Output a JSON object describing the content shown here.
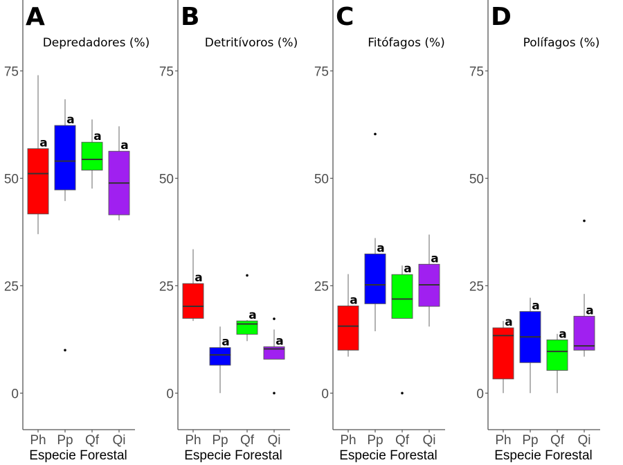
{
  "chart_data": [
    {
      "type": "boxplot",
      "panel_label": "A",
      "title": "Depredadores (%)",
      "xlabel": "Especie Forestal",
      "ylabel": "",
      "ylim": [
        -8.5,
        91.5
      ],
      "yticks": [
        0,
        25,
        50,
        75
      ],
      "grid": false,
      "categories": [
        "Ph",
        "Pp",
        "Qf",
        "Qi"
      ],
      "colors": [
        "#ff0000",
        "#0000ff",
        "#00ff00",
        "#a020f0"
      ],
      "boxes": [
        {
          "min": 37.0,
          "q1": 41.7,
          "median": 51.1,
          "q3": 56.9,
          "max": 74.0,
          "outliers": [],
          "letter": "a"
        },
        {
          "min": 44.7,
          "q1": 47.3,
          "median": 54.0,
          "q3": 62.3,
          "max": 68.4,
          "outliers": [
            10.0
          ],
          "letter": "a"
        },
        {
          "min": 47.6,
          "q1": 51.9,
          "median": 54.4,
          "q3": 58.4,
          "max": 63.7,
          "outliers": [],
          "letter": "a"
        },
        {
          "min": 40.2,
          "q1": 41.5,
          "median": 48.9,
          "q3": 56.3,
          "max": 62.1,
          "outliers": [],
          "letter": "a"
        }
      ]
    },
    {
      "type": "boxplot",
      "panel_label": "B",
      "title": "Detritívoros (%)",
      "xlabel": "Especie Forestal",
      "ylabel": "",
      "ylim": [
        -8.5,
        91.5
      ],
      "yticks": [
        0,
        25,
        50,
        75
      ],
      "grid": false,
      "categories": [
        "Ph",
        "Pp",
        "Qf",
        "Qi"
      ],
      "colors": [
        "#ff0000",
        "#0000ff",
        "#00ff00",
        "#a020f0"
      ],
      "boxes": [
        {
          "min": 16.8,
          "q1": 17.4,
          "median": 20.2,
          "q3": 25.5,
          "max": 33.5,
          "outliers": [],
          "letter": "a"
        },
        {
          "min": 0,
          "q1": 6.5,
          "median": 8.9,
          "q3": 10.6,
          "max": 15.5,
          "outliers": [],
          "letter": "a"
        },
        {
          "min": 12.1,
          "q1": 13.7,
          "median": 16.1,
          "q3": 16.8,
          "max": 17.0,
          "outliers": [
            27.4
          ],
          "letter": "a"
        },
        {
          "min": 7.9,
          "q1": 7.9,
          "median": 10.3,
          "q3": 10.8,
          "max": 14.8,
          "outliers": [
            17.3,
            0
          ],
          "letter": "a"
        }
      ]
    },
    {
      "type": "boxplot",
      "panel_label": "C",
      "title": "Fitófagos (%)",
      "xlabel": "Especie Forestal",
      "ylabel": "",
      "ylim": [
        -8.5,
        91.5
      ],
      "yticks": [
        0,
        25,
        50,
        75
      ],
      "grid": false,
      "categories": [
        "Ph",
        "Pp",
        "Qf",
        "Qi"
      ],
      "colors": [
        "#ff0000",
        "#0000ff",
        "#00ff00",
        "#a020f0"
      ],
      "boxes": [
        {
          "min": 8.5,
          "q1": 10.0,
          "median": 15.6,
          "q3": 20.3,
          "max": 27.7,
          "outliers": [],
          "letter": "a"
        },
        {
          "min": 14.4,
          "q1": 20.8,
          "median": 25.2,
          "q3": 32.4,
          "max": 36.1,
          "outliers": [
            60.3
          ],
          "letter": "a"
        },
        {
          "min": 17.4,
          "q1": 17.4,
          "median": 21.9,
          "q3": 27.6,
          "max": 29.7,
          "outliers": [
            0
          ],
          "letter": "a"
        },
        {
          "min": 15.5,
          "q1": 20.2,
          "median": 25.2,
          "q3": 30.0,
          "max": 36.9,
          "outliers": [],
          "letter": "a"
        }
      ]
    },
    {
      "type": "boxplot",
      "panel_label": "D",
      "title": "Polífagos (%)",
      "xlabel": "Especie Forestal",
      "ylabel": "",
      "ylim": [
        -8.5,
        91.5
      ],
      "yticks": [
        0,
        25,
        50,
        75
      ],
      "grid": false,
      "categories": [
        "Ph",
        "Pp",
        "Qf",
        "Qi"
      ],
      "colors": [
        "#ff0000",
        "#0000ff",
        "#00ff00",
        "#a020f0"
      ],
      "boxes": [
        {
          "min": 0,
          "q1": 3.3,
          "median": 13.4,
          "q3": 15.2,
          "max": 16.8,
          "outliers": [],
          "letter": "a"
        },
        {
          "min": 0,
          "q1": 7.1,
          "median": 13.1,
          "q3": 19.0,
          "max": 22.2,
          "outliers": [],
          "letter": "a"
        },
        {
          "min": 0,
          "q1": 5.3,
          "median": 9.7,
          "q3": 12.4,
          "max": 13.8,
          "outliers": [],
          "letter": "a"
        },
        {
          "min": 8.5,
          "q1": 10.0,
          "median": 11.0,
          "q3": 17.9,
          "max": 23.1,
          "outliers": [
            40.1
          ],
          "letter": "a"
        }
      ]
    }
  ]
}
